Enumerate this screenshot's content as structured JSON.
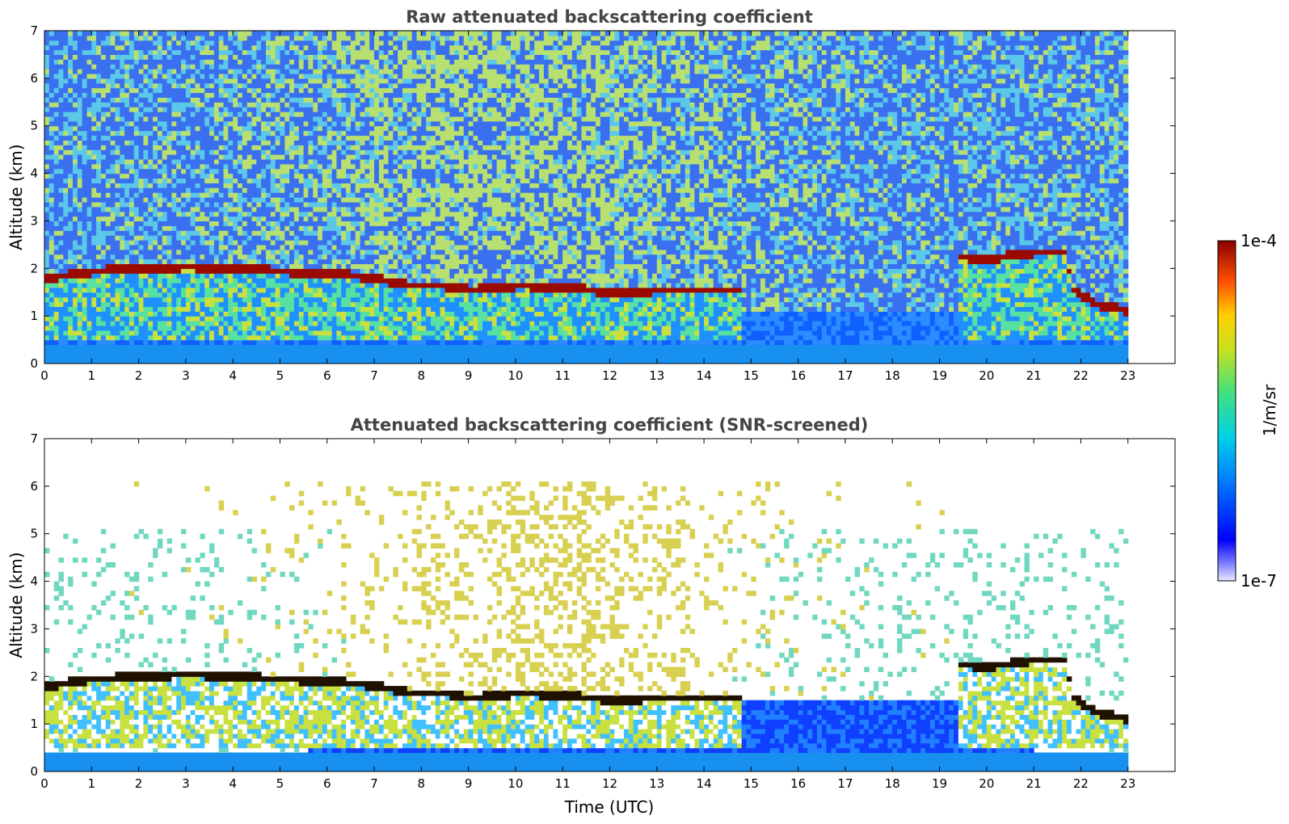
{
  "chart_data": [
    {
      "type": "heatmap",
      "title": "Raw attenuated backscattering coefficient",
      "xlabel": "",
      "ylabel": "Altitude (km)",
      "xlim": [
        0,
        24
      ],
      "ylim": [
        0,
        7
      ],
      "x_ticks": [
        "0",
        "1",
        "2",
        "3",
        "4",
        "5",
        "6",
        "7",
        "8",
        "9",
        "10",
        "11",
        "12",
        "13",
        "14",
        "15",
        "16",
        "17",
        "18",
        "19",
        "20",
        "21",
        "22",
        "23"
      ],
      "y_ticks": [
        "0",
        "1",
        "2",
        "3",
        "4",
        "5",
        "6",
        "7"
      ],
      "data_extent_hours": [
        0,
        23
      ],
      "cloud_layer_km": [
        [
          0,
          1.75
        ],
        [
          1,
          1.9
        ],
        [
          2,
          1.95
        ],
        [
          3,
          2.0
        ],
        [
          4,
          1.95
        ],
        [
          5,
          1.9
        ],
        [
          6,
          1.85
        ],
        [
          7,
          1.75
        ],
        [
          7.7,
          1.6
        ],
        [
          8.4,
          1.6
        ],
        [
          9,
          1.5
        ],
        [
          10,
          1.6
        ],
        [
          11,
          1.55
        ],
        [
          12,
          1.45
        ],
        [
          13,
          1.5
        ],
        [
          14,
          1.5
        ],
        [
          14.7,
          1.5
        ],
        [
          19.4,
          2.2
        ],
        [
          20,
          2.15
        ],
        [
          21,
          2.3
        ],
        [
          21.6,
          2.3
        ],
        [
          21.8,
          1.5
        ],
        [
          22.3,
          1.2
        ],
        [
          23,
          1.05
        ]
      ]
    },
    {
      "type": "heatmap",
      "title": "Attenuated backscattering coefficient (SNR-screened)",
      "xlabel": "Time (UTC)",
      "ylabel": "Altitude (km)",
      "xlim": [
        0,
        24
      ],
      "ylim": [
        0,
        7
      ],
      "x_ticks": [
        "0",
        "1",
        "2",
        "3",
        "4",
        "5",
        "6",
        "7",
        "8",
        "9",
        "10",
        "11",
        "12",
        "13",
        "14",
        "15",
        "16",
        "17",
        "18",
        "19",
        "20",
        "21",
        "22",
        "23"
      ],
      "y_ticks": [
        "0",
        "1",
        "2",
        "3",
        "4",
        "5",
        "6",
        "7"
      ],
      "data_extent_hours": [
        0,
        23
      ]
    }
  ],
  "colorbar": {
    "label": "1/m/sr",
    "max_label": "1e-4",
    "min_label": "1e-7",
    "scale": "log",
    "range": [
      1e-07,
      0.0001
    ],
    "colormap": "jet"
  }
}
